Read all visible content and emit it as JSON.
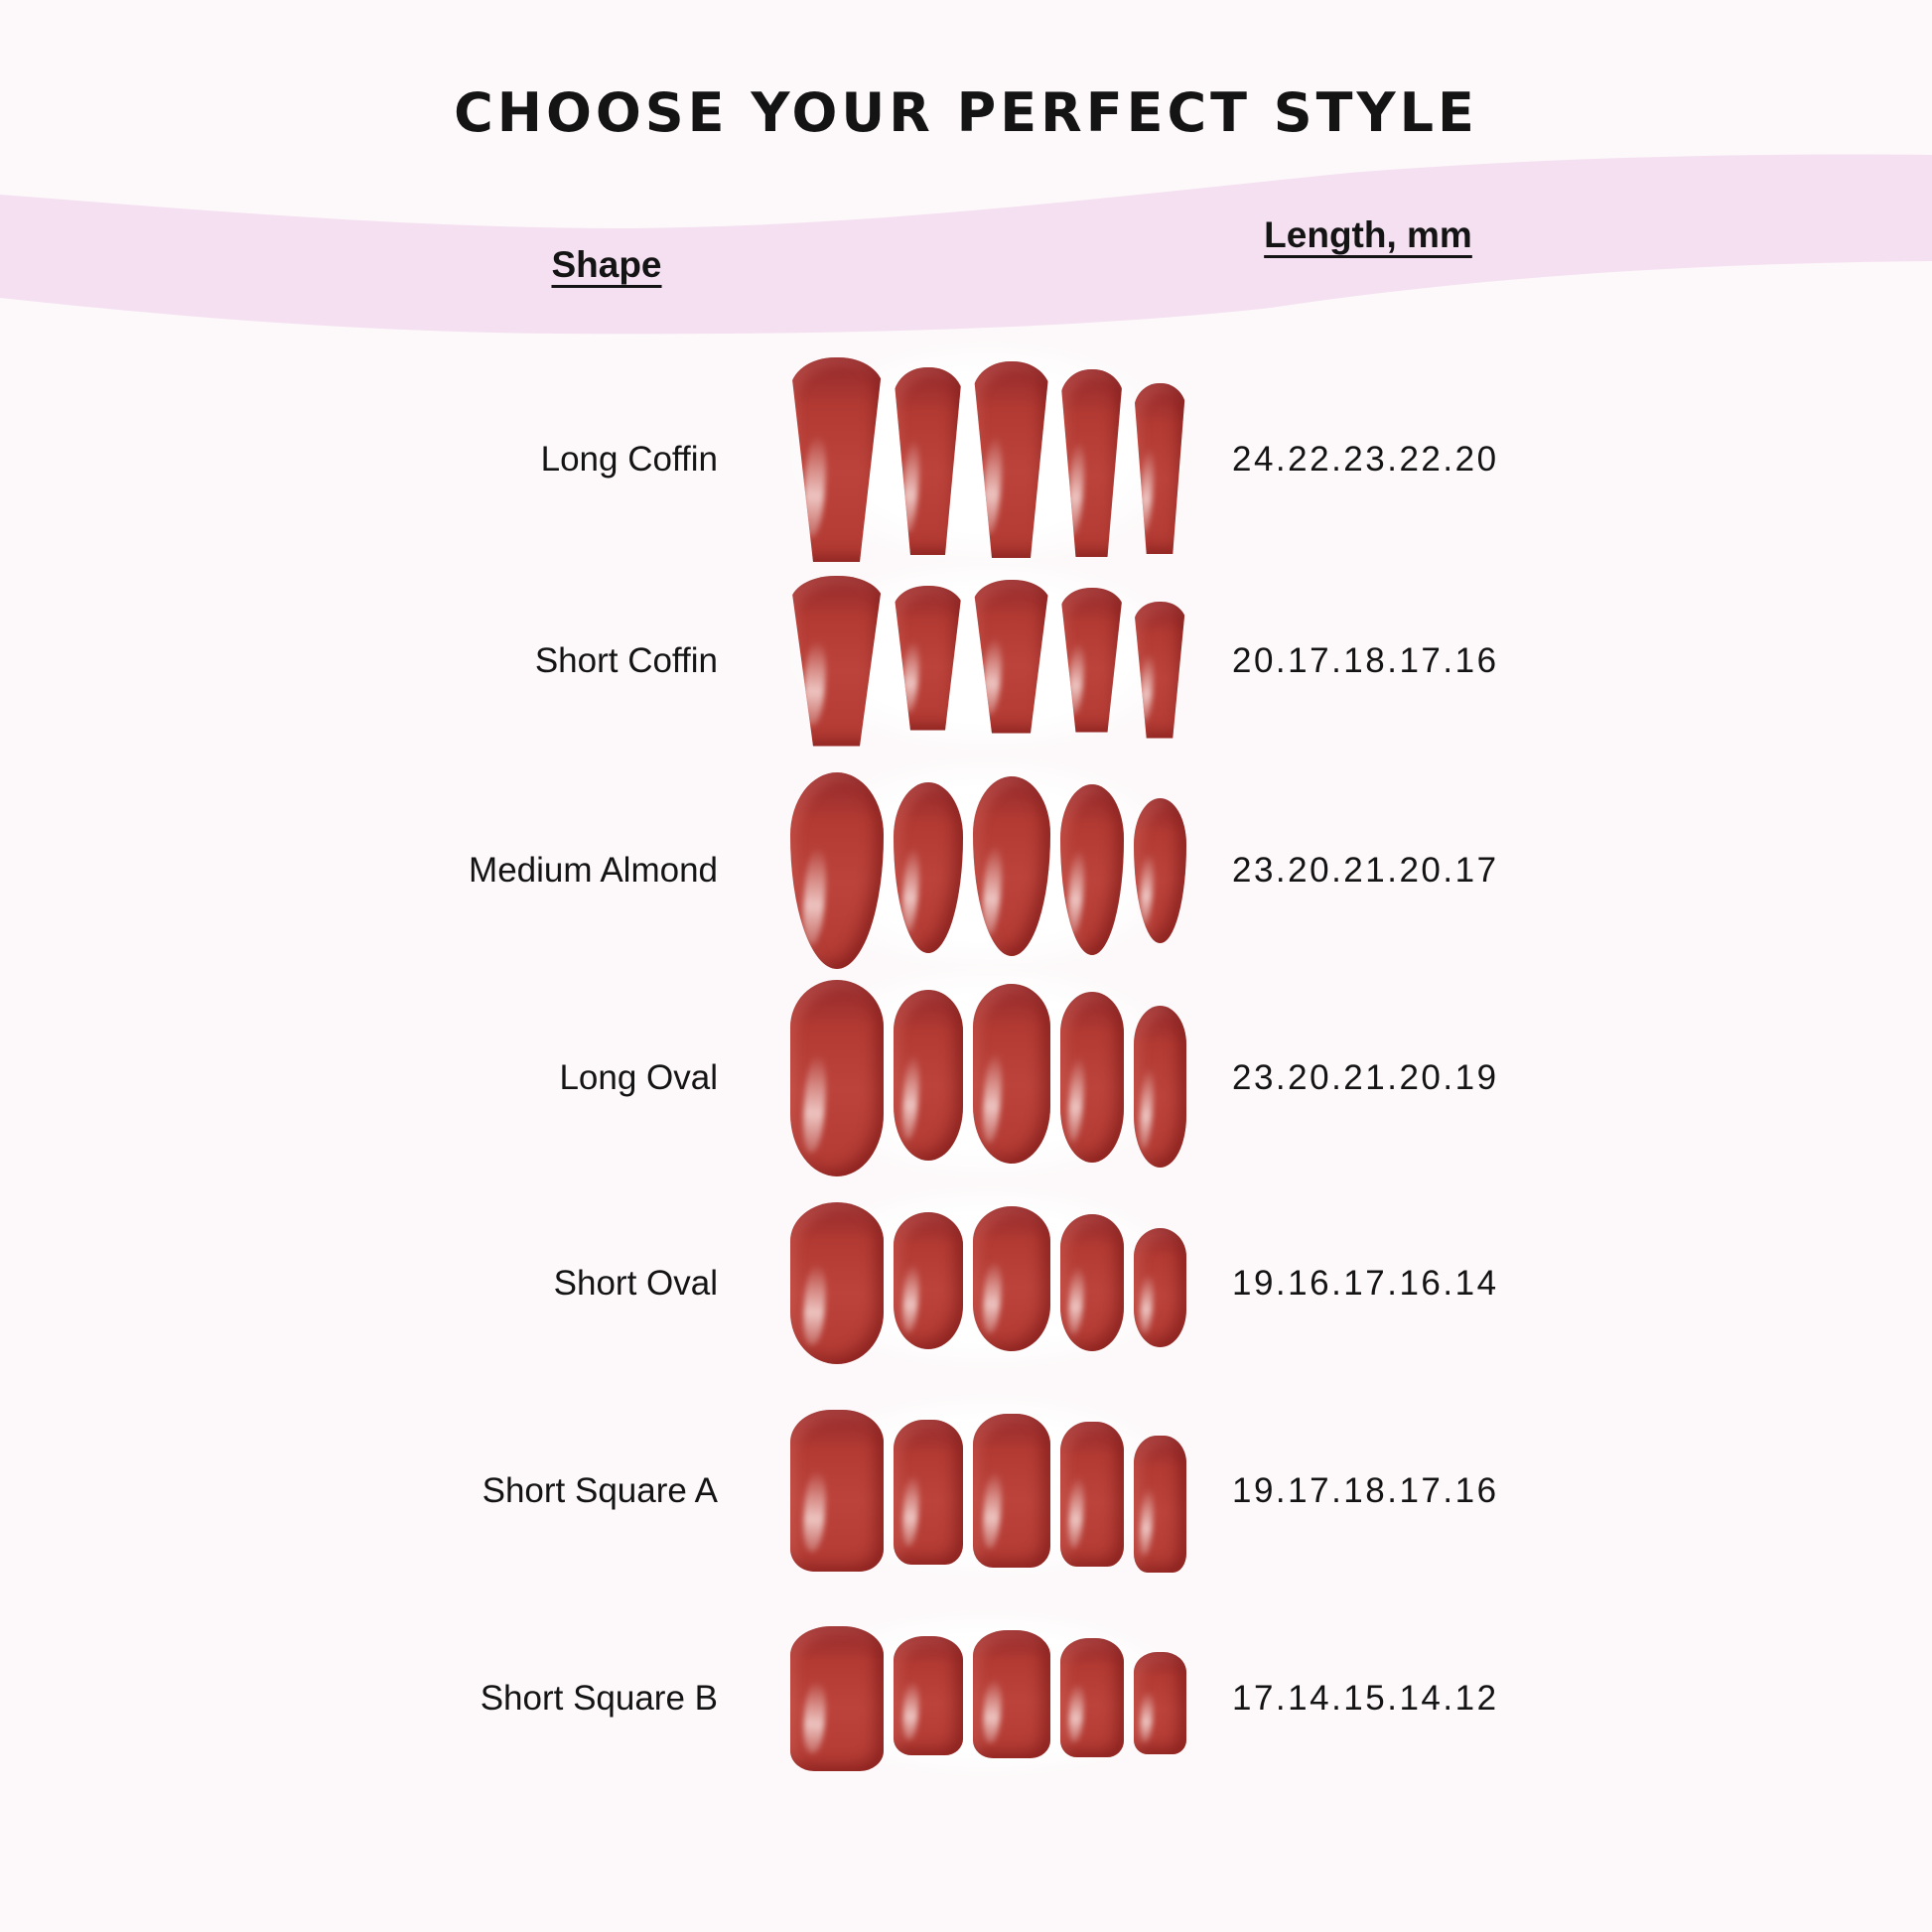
{
  "title": "CHOOSE YOUR PERFECT STYLE",
  "table": {
    "shape_header": "Shape",
    "length_header": "Length, mm",
    "rows": [
      {
        "shape": "Long Coffin",
        "lengths_label": "24.22.23.22.20",
        "lengths_mm": [
          24,
          22,
          23,
          22,
          20
        ],
        "nail_style": "coffin"
      },
      {
        "shape": "Short Coffin",
        "lengths_label": "20.17.18.17.16",
        "lengths_mm": [
          20,
          17,
          18,
          17,
          16
        ],
        "nail_style": "coffin"
      },
      {
        "shape": "Medium Almond",
        "lengths_label": "23.20.21.20.17",
        "lengths_mm": [
          23,
          20,
          21,
          20,
          17
        ],
        "nail_style": "almond"
      },
      {
        "shape": "Long Oval",
        "lengths_label": "23.20.21.20.19",
        "lengths_mm": [
          23,
          20,
          21,
          20,
          19
        ],
        "nail_style": "oval"
      },
      {
        "shape": "Short Oval",
        "lengths_label": "19.16.17.16.14",
        "lengths_mm": [
          19,
          16,
          17,
          16,
          14
        ],
        "nail_style": "oval"
      },
      {
        "shape": "Short Square A",
        "lengths_label": "19.17.18.17.16",
        "lengths_mm": [
          19,
          17,
          18,
          17,
          16
        ],
        "nail_style": "square"
      },
      {
        "shape": "Short Square B",
        "lengths_label": "17.14.15.14.12",
        "lengths_mm": [
          17,
          14,
          15,
          14,
          12
        ],
        "nail_style": "square"
      }
    ]
  },
  "colors": {
    "background": "#fdf9fa",
    "band": "#f5e0f1",
    "text": "#141414",
    "nail_red": "#b23a33",
    "nail_mid": "#bb433b",
    "nail_dark": "#92292b",
    "photo_backdrop": "#ffffff"
  }
}
